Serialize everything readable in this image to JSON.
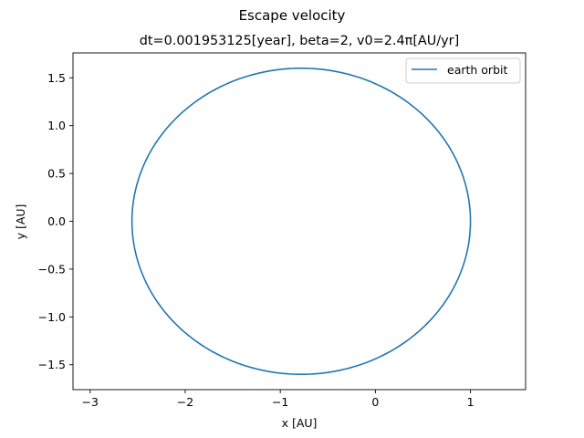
{
  "chart_data": {
    "type": "line",
    "suptitle": "Escape velocity",
    "title": "dt=0.001953125[year], beta=2, v0=2.4π[AU/yr]",
    "xlabel": "x [AU]",
    "ylabel": "y [AU]",
    "xlim": [
      -3.18,
      1.58
    ],
    "ylim": [
      -1.76,
      1.76
    ],
    "xticks": [
      -3,
      -2,
      -1,
      0,
      1
    ],
    "xtick_labels": [
      "−3",
      "−2",
      "−1",
      "0",
      "1"
    ],
    "yticks": [
      -1.5,
      -1.0,
      -0.5,
      0.0,
      0.5,
      1.0,
      1.5
    ],
    "ytick_labels": [
      "−1.5",
      "−1.0",
      "−0.5",
      "0.0",
      "0.5",
      "1.0",
      "1.5"
    ],
    "grid": false,
    "legend_position": "top-right",
    "series": [
      {
        "name": "earth orbit",
        "color": "#1f77b4",
        "shape": "ellipse",
        "center": [
          -0.78,
          0.0
        ],
        "semi_axis_x": 1.78,
        "semi_axis_y": 1.6,
        "x": [
          1.0,
          0.929,
          0.722,
          0.41,
          0.05,
          -0.78,
          -1.61,
          -1.97,
          -2.28,
          -2.49,
          -2.56,
          -2.49,
          -2.28,
          -1.97,
          -1.61,
          -0.78,
          0.05,
          0.41,
          0.722,
          0.929,
          1.0
        ],
        "y": [
          0.0,
          0.494,
          0.94,
          1.29,
          1.415,
          1.6,
          1.415,
          1.29,
          0.94,
          0.494,
          0.0,
          -0.494,
          -0.94,
          -1.29,
          -1.415,
          -1.6,
          -1.415,
          -1.29,
          -0.94,
          -0.494,
          0.0
        ]
      }
    ]
  }
}
